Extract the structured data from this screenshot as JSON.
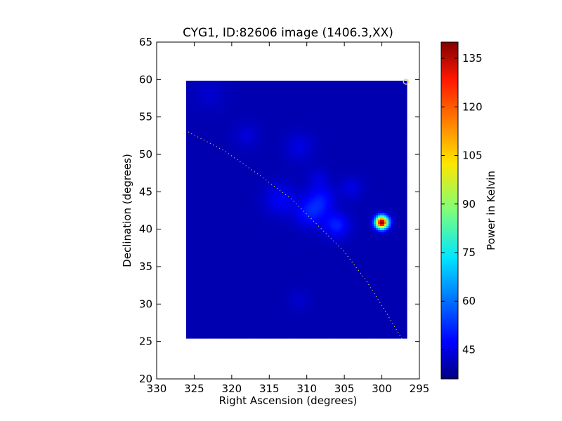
{
  "chart_data": {
    "type": "heatmap",
    "title": "CYG1, ID:82606 image (1406.3,XX)",
    "xlabel": "Right Ascension (degrees)",
    "ylabel": "Declination (degrees)",
    "xlim": [
      330,
      295
    ],
    "ylim": [
      20,
      65
    ],
    "x_ticks": [
      330,
      325,
      320,
      315,
      310,
      305,
      300,
      295
    ],
    "y_ticks": [
      20,
      25,
      30,
      35,
      40,
      45,
      50,
      55,
      60,
      65
    ],
    "colormap": "jet",
    "colorbar": {
      "label": "Power in Kelvin",
      "range": [
        36,
        140
      ],
      "ticks": [
        45,
        60,
        75,
        90,
        105,
        120,
        135
      ]
    },
    "image_extent": {
      "ra": [
        326.1,
        296.7
      ],
      "dec": [
        25.4,
        59.8
      ]
    },
    "background_level": 41,
    "sources": [
      {
        "ra": 300.0,
        "dec": 40.9,
        "peak": 140,
        "sigma": 0.6
      },
      {
        "ra": 309.5,
        "dec": 42.2,
        "peak": 51,
        "sigma": 1.4
      },
      {
        "ra": 306.0,
        "dec": 40.5,
        "peak": 52,
        "sigma": 1.2
      },
      {
        "ra": 308.0,
        "dec": 44.0,
        "peak": 49,
        "sigma": 1.3
      },
      {
        "ra": 313.5,
        "dec": 44.0,
        "peak": 48,
        "sigma": 1.5
      },
      {
        "ra": 311.0,
        "dec": 51.0,
        "peak": 46,
        "sigma": 1.3
      },
      {
        "ra": 318.0,
        "dec": 52.5,
        "peak": 45,
        "sigma": 1.2
      },
      {
        "ra": 304.0,
        "dec": 45.5,
        "peak": 46,
        "sigma": 1.0
      },
      {
        "ra": 308.5,
        "dec": 46.8,
        "peak": 45,
        "sigma": 1.0
      },
      {
        "ra": 323.0,
        "dec": 58.0,
        "peak": 44,
        "sigma": 1.5
      },
      {
        "ra": 311.0,
        "dec": 30.5,
        "peak": 44,
        "sigma": 1.0
      }
    ],
    "galactic_plane": [
      [
        325.8,
        53.0
      ],
      [
        321.0,
        50.5
      ],
      [
        316.0,
        47.0
      ],
      [
        312.0,
        44.0
      ],
      [
        308.0,
        40.0
      ],
      [
        305.0,
        37.0
      ],
      [
        302.0,
        33.0
      ],
      [
        299.5,
        29.0
      ],
      [
        297.3,
        25.3
      ]
    ],
    "marker": {
      "ra": 296.8,
      "dec": 59.7,
      "shape": "circle",
      "color": "#e0e040"
    }
  }
}
